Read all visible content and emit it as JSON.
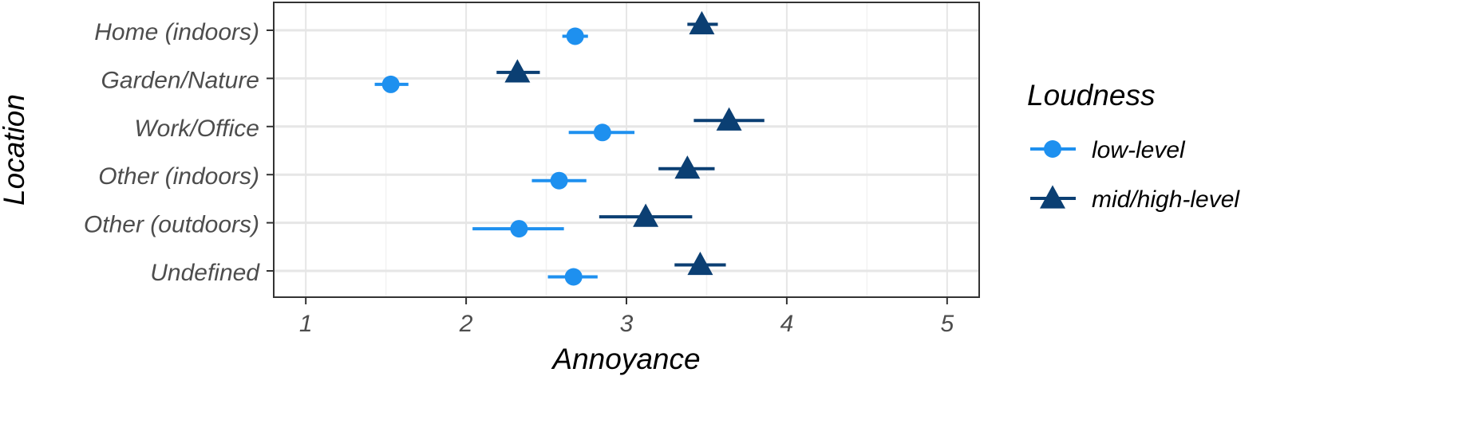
{
  "chart_data": {
    "type": "scatter",
    "orientation": "horizontal",
    "xlabel": "Annoyance",
    "ylabel": "Location",
    "xlim": [
      0.8,
      5.2
    ],
    "xticks": [
      1,
      2,
      3,
      4,
      5
    ],
    "categories": [
      "Home (indoors)",
      "Garden/Nature",
      "Work/Office",
      "Other (indoors)",
      "Other (outdoors)",
      "Undefined"
    ],
    "grid": true,
    "legend": {
      "title": "Loudness",
      "position": "right"
    },
    "series": [
      {
        "name": "low-level",
        "color": "#1e90ef",
        "marker": "circle",
        "values": [
          2.68,
          1.53,
          2.85,
          2.58,
          2.33,
          2.67
        ],
        "ci_low": [
          2.6,
          1.43,
          2.64,
          2.41,
          2.04,
          2.51
        ],
        "ci_high": [
          2.76,
          1.64,
          3.05,
          2.75,
          2.61,
          2.82
        ]
      },
      {
        "name": "mid/high-level",
        "color": "#0b3f73",
        "marker": "triangle",
        "values": [
          3.47,
          2.32,
          3.64,
          3.38,
          3.12,
          3.46
        ],
        "ci_low": [
          3.38,
          2.19,
          3.42,
          3.2,
          2.83,
          3.3
        ],
        "ci_high": [
          3.57,
          2.46,
          3.86,
          3.55,
          3.41,
          3.62
        ]
      }
    ]
  }
}
